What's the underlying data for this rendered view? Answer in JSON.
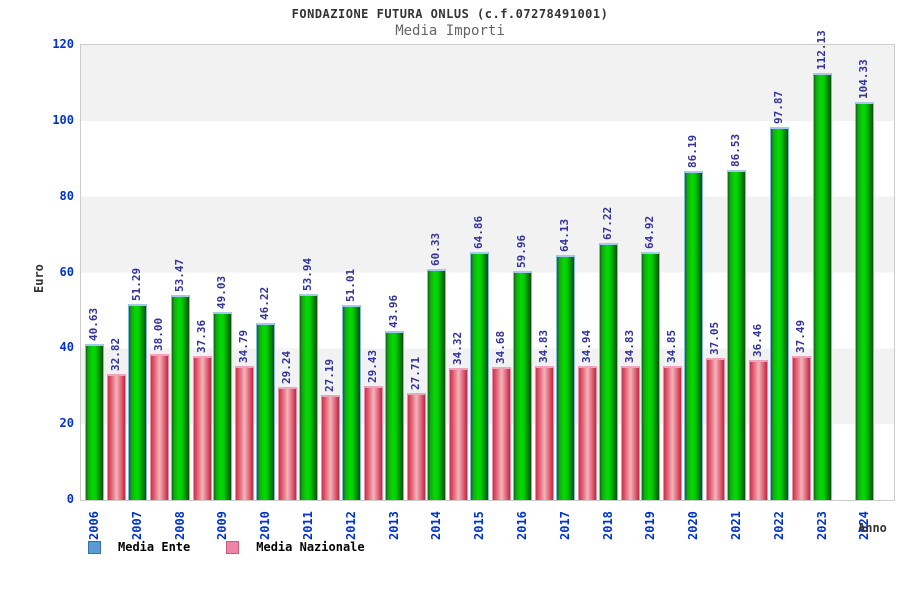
{
  "header": {
    "title": "FONDAZIONE FUTURA ONLUS (c.f.07278491001)",
    "subtitle": "Media Importi"
  },
  "axes": {
    "y_title": "Euro",
    "x_title": "Anno",
    "y_ticks": [
      0,
      20,
      40,
      60,
      80,
      100,
      120
    ],
    "ylim": [
      0,
      120
    ]
  },
  "legend": [
    {
      "label": "Media Ente",
      "color": "#5b9bd5",
      "border": "#3a6ea8"
    },
    {
      "label": "Media Nazionale",
      "color": "#ee85a8",
      "border": "#c95b80"
    }
  ],
  "colors": {
    "bar_ente": "#00cc00",
    "bar_nazionale": "#e06070",
    "tick_label": "#0033cc",
    "value_label": "#333399",
    "band_gray": "#f2f2f2",
    "plot_border": "#cccccc"
  },
  "chart_data": {
    "type": "bar",
    "title": "Media Importi",
    "xlabel": "Anno",
    "ylabel": "Euro",
    "ylim": [
      0,
      120
    ],
    "grid": "alternating horizontal bands every 20 units",
    "legend_position": "bottom-left",
    "categories": [
      "2006",
      "2007",
      "2008",
      "2009",
      "2010",
      "2011",
      "2012",
      "2013",
      "2014",
      "2015",
      "2016",
      "2017",
      "2018",
      "2019",
      "2020",
      "2021",
      "2022",
      "2023",
      "2024"
    ],
    "series": [
      {
        "name": "Media Ente",
        "values": [
          40.63,
          51.29,
          53.47,
          49.03,
          46.22,
          53.94,
          51.01,
          43.96,
          60.33,
          64.86,
          59.96,
          64.13,
          67.22,
          64.92,
          86.19,
          86.53,
          97.87,
          112.13,
          104.33
        ],
        "labels": [
          "40.63",
          "51.29",
          "53.47",
          "49.03",
          "46.22",
          "53.94",
          "51.01",
          "43.96",
          "60.33",
          "64.86",
          "59.96",
          "64.13",
          "67.22",
          "64.92",
          "86.19",
          "86.53",
          "97.87",
          "112.13",
          "104.33"
        ]
      },
      {
        "name": "Media Nazionale",
        "values": [
          32.82,
          38.0,
          37.36,
          34.79,
          29.24,
          27.19,
          29.43,
          27.71,
          34.32,
          34.68,
          34.83,
          34.94,
          34.83,
          34.85,
          37.05,
          36.46,
          37.49,
          null,
          null
        ],
        "labels": [
          "32.82",
          "38.00",
          "37.36",
          "34.79",
          "29.24",
          "27.19",
          "29.43",
          "27.71",
          "34.32",
          "34.68",
          "34.83",
          "34.94",
          "34.83",
          "34.85",
          "37.05",
          "36.46",
          "37.49",
          null,
          null
        ]
      }
    ]
  }
}
